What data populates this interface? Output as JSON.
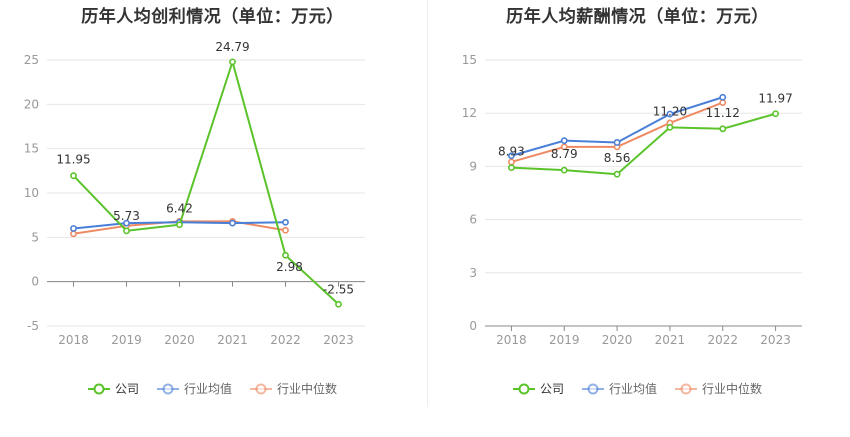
{
  "chart_data": [
    {
      "type": "line",
      "title": "历年人均创利情况（单位：万元）",
      "categories": [
        "2018",
        "2019",
        "2020",
        "2021",
        "2022",
        "2023"
      ],
      "ylim": [
        -5,
        25
      ],
      "yticks": [
        -5,
        0,
        5,
        10,
        15,
        20,
        25
      ],
      "grid": true,
      "legend_position": "bottom",
      "series": [
        {
          "name": "公司",
          "color": "#5ac32a",
          "values": [
            11.95,
            5.73,
            6.42,
            24.79,
            2.98,
            -2.55
          ],
          "labels": [
            "11.95",
            "5.73",
            "6.42",
            "24.79",
            "2.98",
            "-2.55"
          ]
        },
        {
          "name": "行业均值",
          "color": "#4a7fd8",
          "values": [
            6.0,
            6.6,
            6.7,
            6.6,
            6.7,
            null
          ]
        },
        {
          "name": "行业中位数",
          "color": "#ee8a63",
          "values": [
            5.4,
            6.3,
            6.8,
            6.8,
            5.8,
            null
          ]
        }
      ]
    },
    {
      "type": "line",
      "title": "历年人均薪酬情况（单位：万元）",
      "categories": [
        "2018",
        "2019",
        "2020",
        "2021",
        "2022",
        "2023"
      ],
      "ylim": [
        0,
        15
      ],
      "yticks": [
        0,
        3,
        6,
        9,
        12,
        15
      ],
      "grid": true,
      "legend_position": "bottom",
      "series": [
        {
          "name": "公司",
          "color": "#5ac32a",
          "values": [
            8.93,
            8.79,
            8.56,
            11.2,
            11.12,
            11.97
          ],
          "labels": [
            "8.93",
            "8.79",
            "8.56",
            "11.20",
            "11.12",
            "11.97"
          ]
        },
        {
          "name": "行业均值",
          "color": "#4a7fd8",
          "values": [
            9.6,
            10.45,
            10.35,
            11.95,
            12.9,
            null
          ]
        },
        {
          "name": "行业中位数",
          "color": "#ee8a63",
          "values": [
            9.25,
            10.1,
            10.1,
            11.45,
            12.6,
            null
          ]
        }
      ]
    }
  ]
}
